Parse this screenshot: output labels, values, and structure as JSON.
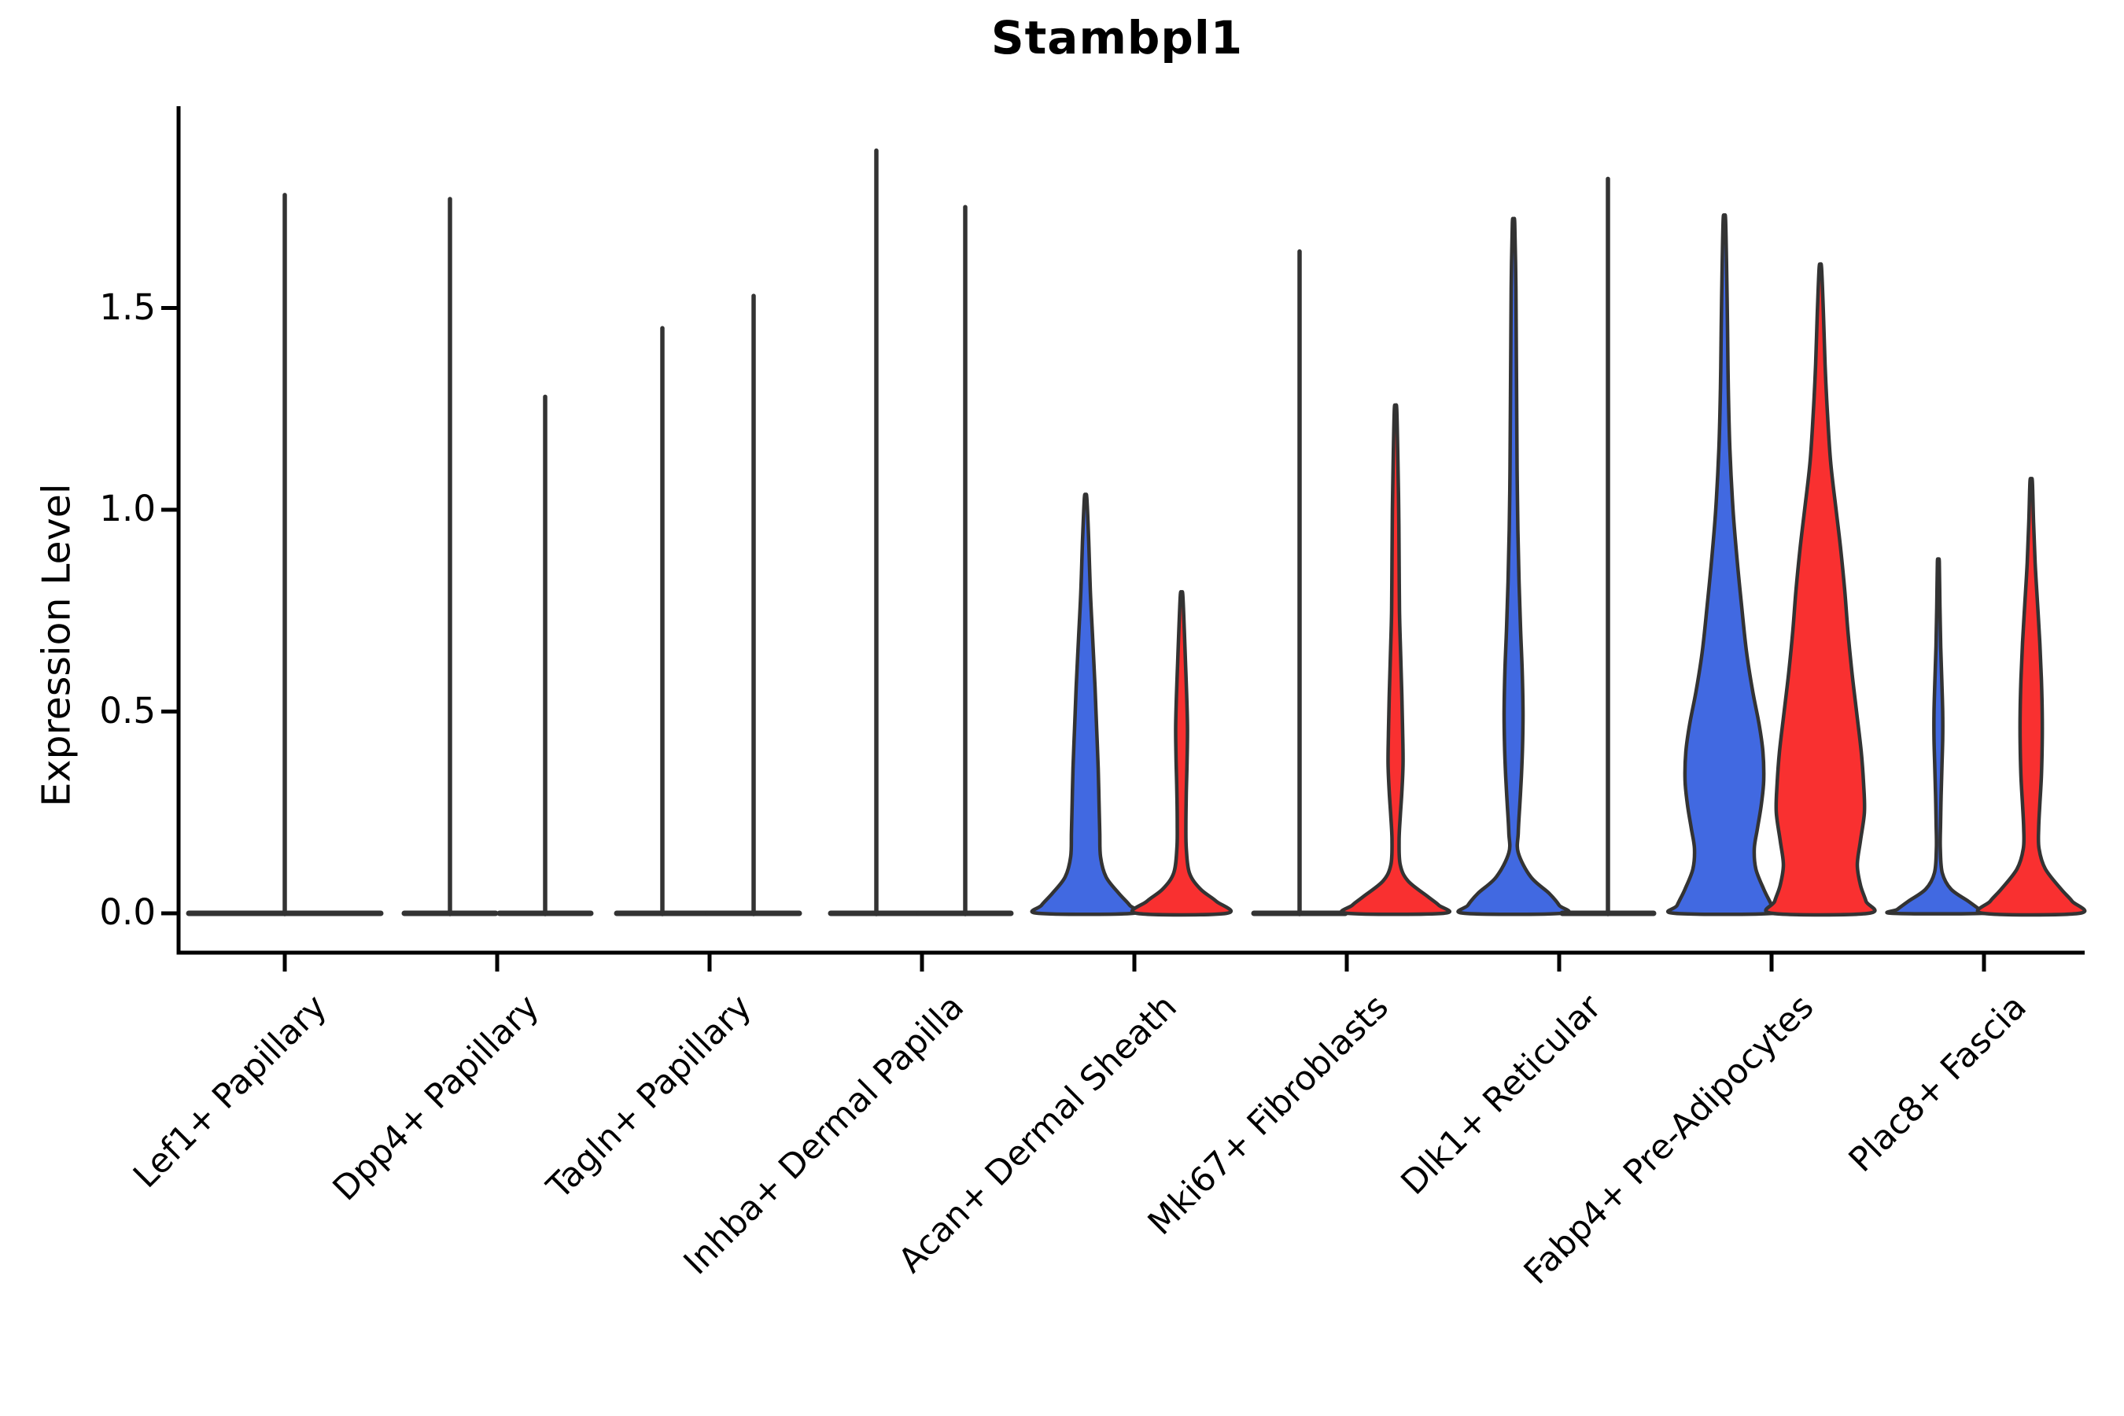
{
  "title": "Stambpl1",
  "y_axis": {
    "label": "Expression Level",
    "ticks": [
      {
        "label": "0.0",
        "value": 0.0
      },
      {
        "label": "0.5",
        "value": 0.5
      },
      {
        "label": "1.0",
        "value": 1.0
      },
      {
        "label": "1.5",
        "value": 1.5
      }
    ]
  },
  "colors": {
    "blue": "#4169E1",
    "red": "#F93030",
    "edge": "#333333",
    "collapsed_line": "#333333",
    "axis": "#000000"
  },
  "chart_data": {
    "type": "violin",
    "title": "Stambpl1",
    "xlabel": "",
    "ylabel": "Expression Level",
    "ylim": [
      -0.1,
      2.0
    ],
    "yticks": [
      0.0,
      0.5,
      1.0,
      1.5
    ],
    "grid": false,
    "legend": false,
    "series_colors": {
      "blue": "#4169E1",
      "red": "#F93030"
    },
    "categories": [
      "Lef1+ Papillary",
      "Dpp4+ Papillary",
      "Tagln+ Papillary",
      "Inhba+ Dermal Papilla",
      "Acan+ Dermal Sheath",
      "Mki67+ Fibroblasts",
      "Dlk1+ Reticular",
      "Fabp4+ Pre-Adipocytes",
      "Plac8+ Fascia"
    ],
    "groups": [
      {
        "label": "Lef1+ Papillary",
        "violins": [
          {
            "collapsed": true,
            "offset": 0,
            "max": 1.78,
            "base_halfwidth": 122
          }
        ]
      },
      {
        "label": "Dpp4+ Papillary",
        "violins": [
          {
            "series": "blue",
            "collapsed": true,
            "offset": -60,
            "max": 1.77,
            "base_halfwidth": 58
          },
          {
            "series": "red",
            "collapsed": true,
            "offset": 61,
            "max": 1.28,
            "base_halfwidth": 58
          }
        ]
      },
      {
        "label": "Tagln+ Papillary",
        "violins": [
          {
            "series": "blue",
            "collapsed": true,
            "offset": -60,
            "max": 1.45,
            "base_halfwidth": 58
          },
          {
            "series": "red",
            "collapsed": true,
            "offset": 56,
            "max": 1.53,
            "base_halfwidth": 58
          }
        ]
      },
      {
        "label": "Inhba+ Dermal Papilla",
        "violins": [
          {
            "series": "blue",
            "collapsed": true,
            "offset": -58,
            "max": 1.89,
            "base_halfwidth": 58
          },
          {
            "series": "red",
            "collapsed": true,
            "offset": 55,
            "max": 1.75,
            "base_halfwidth": 58
          }
        ]
      },
      {
        "label": "Acan+ Dermal Sheath",
        "violins": [
          {
            "series": "blue",
            "offset": -62,
            "max": 1.03,
            "profile": [
              [
                1.03,
                1.5
              ],
              [
                0.92,
                4
              ],
              [
                0.8,
                6
              ],
              [
                0.68,
                9
              ],
              [
                0.56,
                12
              ],
              [
                0.46,
                14
              ],
              [
                0.36,
                16
              ],
              [
                0.28,
                17
              ],
              [
                0.2,
                18
              ],
              [
                0.14,
                19
              ],
              [
                0.09,
                26
              ],
              [
                0.05,
                42
              ],
              [
                0.02,
                56
              ],
              [
                0,
                60
              ]
            ]
          },
          {
            "series": "red",
            "offset": 60,
            "max": 0.79,
            "profile": [
              [
                0.79,
                1.5
              ],
              [
                0.7,
                3.5
              ],
              [
                0.62,
                5
              ],
              [
                0.54,
                6.5
              ],
              [
                0.46,
                7.5
              ],
              [
                0.38,
                7
              ],
              [
                0.3,
                6
              ],
              [
                0.22,
                5.5
              ],
              [
                0.16,
                6
              ],
              [
                0.1,
                10
              ],
              [
                0.06,
                24
              ],
              [
                0.03,
                44
              ],
              [
                0,
                57
              ]
            ]
          }
        ]
      },
      {
        "label": "Mki67+ Fibroblasts",
        "violins": [
          {
            "series": "blue",
            "collapsed": true,
            "offset": -60,
            "max": 1.64,
            "base_halfwidth": 58
          },
          {
            "series": "red",
            "offset": 62,
            "max": 1.25,
            "profile": [
              [
                1.25,
                1.5
              ],
              [
                1.12,
                3
              ],
              [
                1.0,
                4
              ],
              [
                0.88,
                4.5
              ],
              [
                0.75,
                5
              ],
              [
                0.64,
                6.5
              ],
              [
                0.54,
                8
              ],
              [
                0.45,
                9
              ],
              [
                0.37,
                9.5
              ],
              [
                0.3,
                8
              ],
              [
                0.24,
                6
              ],
              [
                0.18,
                4.5
              ],
              [
                0.12,
                6
              ],
              [
                0.08,
                16
              ],
              [
                0.04,
                42
              ],
              [
                0.02,
                55
              ],
              [
                0,
                61
              ]
            ]
          }
        ]
      },
      {
        "label": "Dlk1+ Reticular",
        "violins": [
          {
            "series": "blue",
            "offset": -58,
            "max": 1.71,
            "profile": [
              [
                1.71,
                1.5
              ],
              [
                1.55,
                3
              ],
              [
                1.4,
                3.5
              ],
              [
                1.25,
                4
              ],
              [
                1.1,
                4.5
              ],
              [
                0.95,
                5.5
              ],
              [
                0.82,
                7
              ],
              [
                0.7,
                9
              ],
              [
                0.6,
                11
              ],
              [
                0.5,
                12
              ],
              [
                0.42,
                11.5
              ],
              [
                0.34,
                10
              ],
              [
                0.27,
                8
              ],
              [
                0.2,
                6
              ],
              [
                0.15,
                6
              ],
              [
                0.09,
                22
              ],
              [
                0.05,
                45
              ],
              [
                0.02,
                58
              ],
              [
                0,
                62
              ]
            ]
          },
          {
            "series": "red",
            "collapsed": true,
            "offset": 62,
            "max": 1.82,
            "base_halfwidth": 58
          }
        ]
      },
      {
        "label": "Fabp4+ Pre-Adipocytes",
        "violins": [
          {
            "series": "blue",
            "offset": -60,
            "max": 1.72,
            "profile": [
              [
                1.72,
                1.5
              ],
              [
                1.58,
                3
              ],
              [
                1.45,
                4
              ],
              [
                1.3,
                5
              ],
              [
                1.15,
                7
              ],
              [
                1.0,
                11
              ],
              [
                0.88,
                16
              ],
              [
                0.76,
                22
              ],
              [
                0.65,
                28
              ],
              [
                0.55,
                36
              ],
              [
                0.47,
                44
              ],
              [
                0.4,
                49
              ],
              [
                0.33,
                50
              ],
              [
                0.27,
                47
              ],
              [
                0.21,
                42
              ],
              [
                0.16,
                38
              ],
              [
                0.11,
                40
              ],
              [
                0.06,
                50
              ],
              [
                0.02,
                60
              ],
              [
                0,
                63
              ]
            ]
          },
          {
            "series": "red",
            "offset": 62,
            "max": 1.6,
            "profile": [
              [
                1.6,
                1.5
              ],
              [
                1.48,
                4
              ],
              [
                1.36,
                6
              ],
              [
                1.24,
                9
              ],
              [
                1.12,
                13
              ],
              [
                1.0,
                20
              ],
              [
                0.9,
                26
              ],
              [
                0.8,
                31
              ],
              [
                0.7,
                35
              ],
              [
                0.6,
                40
              ],
              [
                0.5,
                46
              ],
              [
                0.4,
                52
              ],
              [
                0.32,
                55
              ],
              [
                0.25,
                56
              ],
              [
                0.18,
                51
              ],
              [
                0.12,
                47
              ],
              [
                0.07,
                51
              ],
              [
                0.03,
                58
              ],
              [
                0,
                61
              ]
            ]
          }
        ]
      },
      {
        "label": "Plac8+ Fascia",
        "violins": [
          {
            "series": "blue",
            "offset": -58,
            "max": 0.87,
            "profile": [
              [
                0.87,
                1.2
              ],
              [
                0.76,
                2
              ],
              [
                0.66,
                3
              ],
              [
                0.57,
                4.5
              ],
              [
                0.5,
                5.5
              ],
              [
                0.43,
                5.5
              ],
              [
                0.36,
                4.5
              ],
              [
                0.29,
                3.5
              ],
              [
                0.22,
                2.8
              ],
              [
                0.16,
                2.5
              ],
              [
                0.1,
                5
              ],
              [
                0.06,
                16
              ],
              [
                0.03,
                38
              ],
              [
                0.01,
                52
              ],
              [
                0,
                58
              ]
            ]
          },
          {
            "series": "red",
            "offset": 60,
            "max": 1.07,
            "profile": [
              [
                1.07,
                1.5
              ],
              [
                0.97,
                3
              ],
              [
                0.87,
                5
              ],
              [
                0.77,
                8
              ],
              [
                0.67,
                11
              ],
              [
                0.58,
                13
              ],
              [
                0.5,
                14
              ],
              [
                0.42,
                14
              ],
              [
                0.34,
                13
              ],
              [
                0.27,
                11
              ],
              [
                0.21,
                9.5
              ],
              [
                0.16,
                10
              ],
              [
                0.11,
                18
              ],
              [
                0.06,
                38
              ],
              [
                0.03,
                52
              ],
              [
                0,
                61
              ]
            ]
          }
        ]
      }
    ]
  }
}
